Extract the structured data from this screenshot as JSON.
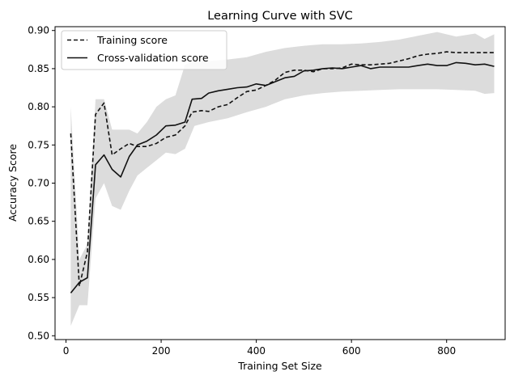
{
  "chart_data": {
    "type": "line",
    "title": "Learning Curve with SVC",
    "xlabel": "Training Set Size",
    "ylabel": "Accuracy Score",
    "xlim": [
      -23,
      923
    ],
    "ylim": [
      0.495,
      0.905
    ],
    "xticks": [
      0,
      200,
      400,
      600,
      800
    ],
    "yticks": [
      0.5,
      0.55,
      0.6,
      0.65,
      0.7,
      0.75,
      0.8,
      0.85,
      0.9
    ],
    "grid": false,
    "legend_position": "top-left",
    "band_color": "#dcdcdc",
    "line_color": "#111111",
    "series": [
      {
        "name": "Training score",
        "style": "dashed",
        "points": [
          [
            10,
            0.765
          ],
          [
            28,
            0.565
          ],
          [
            45,
            0.61
          ],
          [
            62,
            0.79
          ],
          [
            80,
            0.805
          ],
          [
            97,
            0.737
          ],
          [
            115,
            0.745
          ],
          [
            133,
            0.752
          ],
          [
            150,
            0.748
          ],
          [
            170,
            0.748
          ],
          [
            190,
            0.752
          ],
          [
            210,
            0.76
          ],
          [
            230,
            0.763
          ],
          [
            250,
            0.775
          ],
          [
            265,
            0.793
          ],
          [
            285,
            0.795
          ],
          [
            300,
            0.794
          ],
          [
            320,
            0.8
          ],
          [
            340,
            0.803
          ],
          [
            360,
            0.812
          ],
          [
            380,
            0.82
          ],
          [
            400,
            0.822
          ],
          [
            420,
            0.828
          ],
          [
            440,
            0.835
          ],
          [
            460,
            0.845
          ],
          [
            480,
            0.848
          ],
          [
            500,
            0.848
          ],
          [
            520,
            0.846
          ],
          [
            540,
            0.85
          ],
          [
            560,
            0.85
          ],
          [
            580,
            0.851
          ],
          [
            600,
            0.856
          ],
          [
            620,
            0.855
          ],
          [
            640,
            0.855
          ],
          [
            660,
            0.856
          ],
          [
            680,
            0.857
          ],
          [
            700,
            0.86
          ],
          [
            720,
            0.863
          ],
          [
            740,
            0.867
          ],
          [
            760,
            0.869
          ],
          [
            780,
            0.87
          ],
          [
            800,
            0.872
          ],
          [
            820,
            0.871
          ],
          [
            840,
            0.871
          ],
          [
            860,
            0.871
          ],
          [
            880,
            0.871
          ],
          [
            900,
            0.871
          ]
        ]
      },
      {
        "name": "Cross-validation score",
        "style": "solid",
        "points": [
          [
            10,
            0.556
          ],
          [
            28,
            0.57
          ],
          [
            45,
            0.576
          ],
          [
            62,
            0.724
          ],
          [
            80,
            0.737
          ],
          [
            97,
            0.718
          ],
          [
            115,
            0.708
          ],
          [
            133,
            0.735
          ],
          [
            150,
            0.75
          ],
          [
            170,
            0.755
          ],
          [
            190,
            0.763
          ],
          [
            210,
            0.775
          ],
          [
            230,
            0.776
          ],
          [
            250,
            0.78
          ],
          [
            265,
            0.81
          ],
          [
            285,
            0.811
          ],
          [
            300,
            0.818
          ],
          [
            320,
            0.821
          ],
          [
            340,
            0.823
          ],
          [
            360,
            0.825
          ],
          [
            380,
            0.826
          ],
          [
            400,
            0.83
          ],
          [
            420,
            0.828
          ],
          [
            440,
            0.833
          ],
          [
            460,
            0.838
          ],
          [
            480,
            0.84
          ],
          [
            500,
            0.847
          ],
          [
            520,
            0.848
          ],
          [
            540,
            0.85
          ],
          [
            560,
            0.851
          ],
          [
            580,
            0.85
          ],
          [
            600,
            0.852
          ],
          [
            620,
            0.854
          ],
          [
            640,
            0.85
          ],
          [
            660,
            0.852
          ],
          [
            680,
            0.852
          ],
          [
            700,
            0.852
          ],
          [
            720,
            0.852
          ],
          [
            740,
            0.854
          ],
          [
            760,
            0.856
          ],
          [
            780,
            0.854
          ],
          [
            800,
            0.854
          ],
          [
            820,
            0.858
          ],
          [
            840,
            0.857
          ],
          [
            860,
            0.855
          ],
          [
            880,
            0.856
          ],
          [
            900,
            0.853
          ]
        ]
      }
    ],
    "band": {
      "upper": [
        [
          10,
          0.8
        ],
        [
          28,
          0.6
        ],
        [
          45,
          0.62
        ],
        [
          62,
          0.81
        ],
        [
          80,
          0.81
        ],
        [
          97,
          0.77
        ],
        [
          115,
          0.77
        ],
        [
          133,
          0.77
        ],
        [
          150,
          0.765
        ],
        [
          170,
          0.78
        ],
        [
          190,
          0.8
        ],
        [
          210,
          0.81
        ],
        [
          230,
          0.815
        ],
        [
          250,
          0.855
        ],
        [
          270,
          0.86
        ],
        [
          300,
          0.86
        ],
        [
          340,
          0.862
        ],
        [
          380,
          0.865
        ],
        [
          420,
          0.872
        ],
        [
          460,
          0.877
        ],
        [
          500,
          0.88
        ],
        [
          540,
          0.882
        ],
        [
          580,
          0.882
        ],
        [
          620,
          0.883
        ],
        [
          660,
          0.885
        ],
        [
          700,
          0.888
        ],
        [
          740,
          0.893
        ],
        [
          780,
          0.898
        ],
        [
          820,
          0.892
        ],
        [
          860,
          0.896
        ],
        [
          880,
          0.889
        ],
        [
          900,
          0.895
        ]
      ],
      "lower": [
        [
          10,
          0.513
        ],
        [
          28,
          0.54
        ],
        [
          45,
          0.54
        ],
        [
          62,
          0.68
        ],
        [
          80,
          0.7
        ],
        [
          97,
          0.67
        ],
        [
          115,
          0.665
        ],
        [
          133,
          0.69
        ],
        [
          150,
          0.71
        ],
        [
          170,
          0.72
        ],
        [
          190,
          0.73
        ],
        [
          210,
          0.74
        ],
        [
          230,
          0.738
        ],
        [
          250,
          0.745
        ],
        [
          270,
          0.775
        ],
        [
          300,
          0.78
        ],
        [
          340,
          0.785
        ],
        [
          380,
          0.793
        ],
        [
          420,
          0.8
        ],
        [
          460,
          0.81
        ],
        [
          500,
          0.815
        ],
        [
          540,
          0.818
        ],
        [
          580,
          0.82
        ],
        [
          620,
          0.821
        ],
        [
          660,
          0.822
        ],
        [
          700,
          0.823
        ],
        [
          740,
          0.823
        ],
        [
          780,
          0.823
        ],
        [
          820,
          0.822
        ],
        [
          860,
          0.821
        ],
        [
          880,
          0.817
        ],
        [
          900,
          0.818
        ]
      ]
    }
  }
}
